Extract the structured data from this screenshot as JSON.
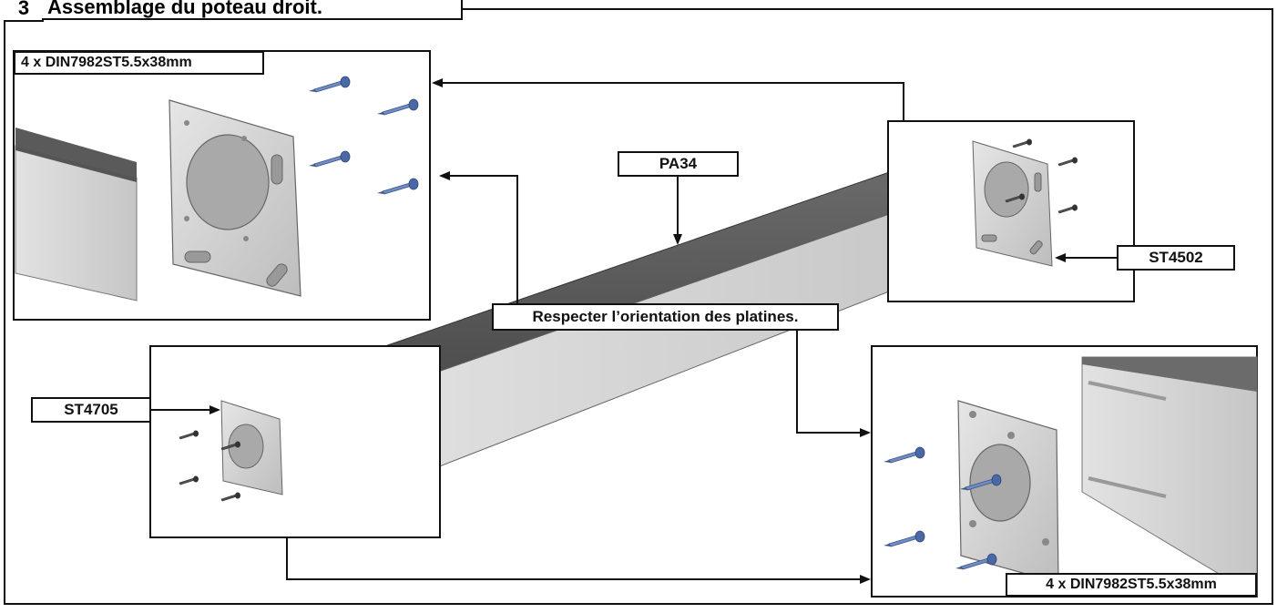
{
  "header": {
    "number": "3",
    "title": "Assemblage du poteau droit."
  },
  "labels": {
    "screws_top_left": "4 x DIN7982ST5.5x38mm",
    "screws_bottom_right": "4 x DIN7982ST5.5x38mm",
    "post_ref": "PA34",
    "plate_right_ref": "ST4502",
    "plate_left_ref": "ST4705",
    "orientation_note": "Respecter l’orientation des platines."
  },
  "colors": {
    "line": "#111111",
    "metal_light": "#d4d4d4",
    "metal_dark": "#5f5f5f",
    "screw": "#5a78b0"
  },
  "icons": [
    "arrow-icon",
    "screw-icon",
    "mounting-plate-icon",
    "post-icon"
  ]
}
